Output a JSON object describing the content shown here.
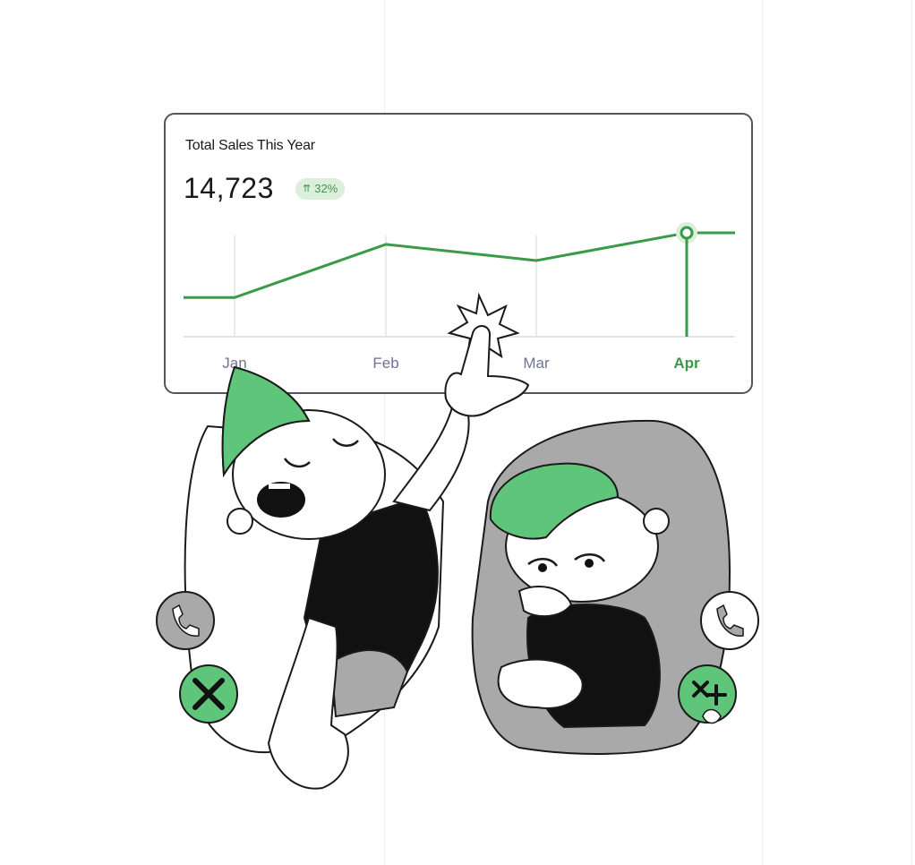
{
  "card": {
    "title": "Total Sales This Year",
    "value": "14,723",
    "badge": {
      "icon": "trend-up-icon",
      "text": "32%"
    }
  },
  "chart_data": {
    "type": "line",
    "categories": [
      "Jan",
      "Feb",
      "Mar",
      "Apr"
    ],
    "highlight": "Apr",
    "series": [
      {
        "values": [
          0.16,
          0.85,
          0.64,
          1.0
        ]
      }
    ],
    "colors": {
      "line": "#3a9a47",
      "grid": "#e4e4e4",
      "highlight_tick": "#3a9a47",
      "tick": "#6f7396"
    }
  },
  "illustration": {
    "left_phone_icon": "phone-icon",
    "left_hangup_icon": "close-icon",
    "right_phone_icon": "phone-icon",
    "right_hangup_icon": "close-icon",
    "accent": "#5ec57a",
    "grey": "#a9a9a9"
  }
}
